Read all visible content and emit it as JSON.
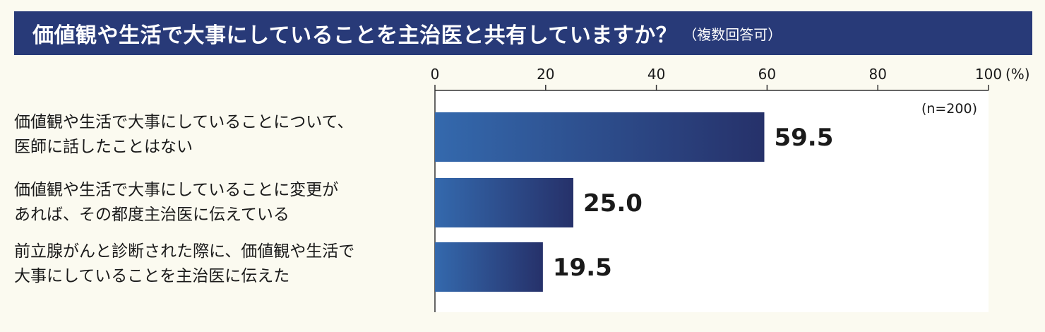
{
  "header": {
    "title": "価値観や生活で大事にしていることを主治医と共有していますか？",
    "subtitle": "（複数回答可）"
  },
  "chart_data": {
    "type": "bar",
    "orientation": "horizontal",
    "categories": [
      [
        "価値観や生活で大事にしていることについて、",
        "医師に話したことはない"
      ],
      [
        "価値観や生活で大事にしていることに変更が",
        "あれば、その都度主治医に伝えている"
      ],
      [
        "前立腺がんと診断された際に、価値観や生活で",
        "大事にしていることを主治医に伝えた"
      ]
    ],
    "values": [
      59.5,
      25.0,
      19.5
    ],
    "value_labels": [
      "59.5",
      "25.0",
      "19.5"
    ],
    "xlim": [
      0,
      100
    ],
    "xticks": [
      0,
      20,
      40,
      60,
      80,
      100
    ],
    "tick_labels": [
      "0",
      "20",
      "40",
      "60",
      "80",
      "100"
    ],
    "unit_label": "(%)",
    "note": "(n=200)",
    "grid": false,
    "bar_color_start": "#3469ad",
    "bar_color_end": "#26316a",
    "plot_background": "#ffffff"
  }
}
